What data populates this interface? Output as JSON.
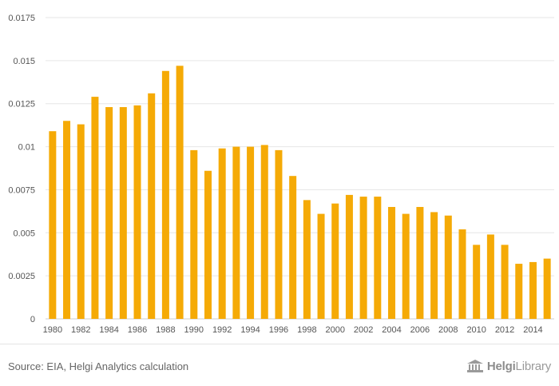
{
  "chart_data": {
    "type": "bar",
    "categories": [
      "1980",
      "1981",
      "1982",
      "1983",
      "1984",
      "1985",
      "1986",
      "1987",
      "1988",
      "1989",
      "1990",
      "1991",
      "1992",
      "1993",
      "1994",
      "1995",
      "1996",
      "1997",
      "1998",
      "1999",
      "2000",
      "2001",
      "2002",
      "2003",
      "2004",
      "2005",
      "2006",
      "2007",
      "2008",
      "2009",
      "2010",
      "2011",
      "2012",
      "2013",
      "2014",
      "2015"
    ],
    "tick_labels_x": [
      "1980",
      "1982",
      "1984",
      "1986",
      "1988",
      "1990",
      "1992",
      "1994",
      "1996",
      "1998",
      "2000",
      "2002",
      "2004",
      "2006",
      "2008",
      "2010",
      "2012",
      "2014"
    ],
    "values": [
      0.0109,
      0.0115,
      0.0113,
      0.0129,
      0.0123,
      0.0123,
      0.0124,
      0.0131,
      0.0144,
      0.0147,
      0.0098,
      0.0086,
      0.0099,
      0.01,
      0.01,
      0.0101,
      0.0098,
      0.0083,
      0.0069,
      0.0061,
      0.0067,
      0.0072,
      0.0071,
      0.0071,
      0.0065,
      0.0061,
      0.0065,
      0.0062,
      0.006,
      0.0052,
      0.0043,
      0.0049,
      0.0043,
      0.0032,
      0.0033,
      0.0035
    ],
    "yticks": [
      "0",
      "0.0025",
      "0.005",
      "0.0075",
      "0.01",
      "0.0125",
      "0.015",
      "0.0175"
    ],
    "ylim": [
      0,
      0.0175
    ],
    "bar_color": "#F5AA06",
    "grid": true,
    "title": "",
    "xlabel": "",
    "ylabel": ""
  },
  "footer": {
    "source": "Source: EIA, Helgi Analytics calculation",
    "brand_bold": "Helgi",
    "brand_regular": "Library"
  }
}
